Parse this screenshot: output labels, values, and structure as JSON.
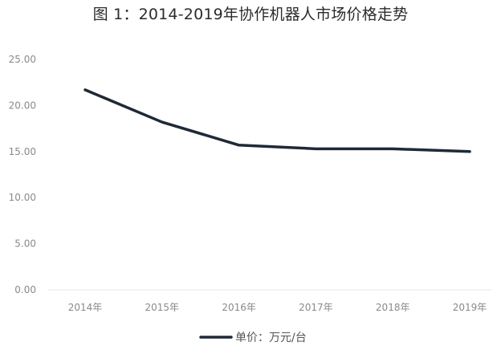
{
  "chart_data": {
    "type": "line",
    "title": "图 1：2014-2019年协作机器人市场价格走势",
    "categories": [
      "2014年",
      "2015年",
      "2016年",
      "2017年",
      "2018年",
      "2019年"
    ],
    "series": [
      {
        "name": "单价：万元/台",
        "values": [
          21.7,
          18.2,
          15.7,
          15.3,
          15.3,
          15.0
        ]
      }
    ],
    "y_ticks": [
      "25.00",
      "20.00",
      "15.00",
      "10.00",
      "5.00",
      "0.00"
    ],
    "ylim": [
      0,
      25
    ],
    "grid": false,
    "legend": "bottom",
    "colors": {
      "series": "#1f2a37",
      "text": "#8a8a8a",
      "axis": "#e6e6e6",
      "title": "#2b2b2b"
    }
  }
}
